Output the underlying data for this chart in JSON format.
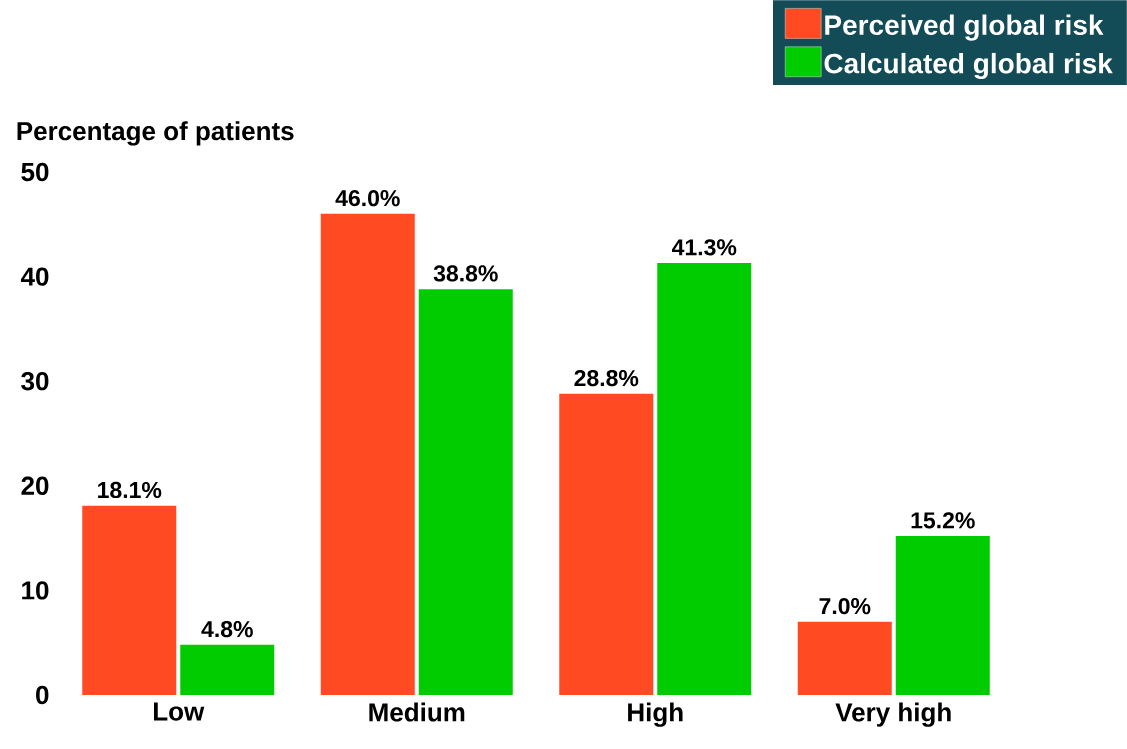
{
  "chart_data": {
    "type": "bar",
    "ylabel": "Percentage of patients",
    "categories": [
      "Low",
      "Medium",
      "High",
      "Very high"
    ],
    "series": [
      {
        "name": "Perceived global risk",
        "color": "#ff4a22",
        "values": [
          18.1,
          46.0,
          28.8,
          7.0
        ],
        "value_labels": [
          "18.1%",
          "46.0%",
          "28.8%",
          "7.0%"
        ]
      },
      {
        "name": "Calculated global risk",
        "color": "#00cc00",
        "values": [
          4.8,
          38.8,
          41.3,
          15.2
        ],
        "value_labels": [
          "4.8%",
          "38.8%",
          "41.3%",
          "15.2%"
        ]
      }
    ],
    "ylim": [
      0,
      50
    ],
    "yticks": [
      0,
      10,
      20,
      30,
      40,
      50
    ],
    "grid": false,
    "legend": "top right"
  }
}
